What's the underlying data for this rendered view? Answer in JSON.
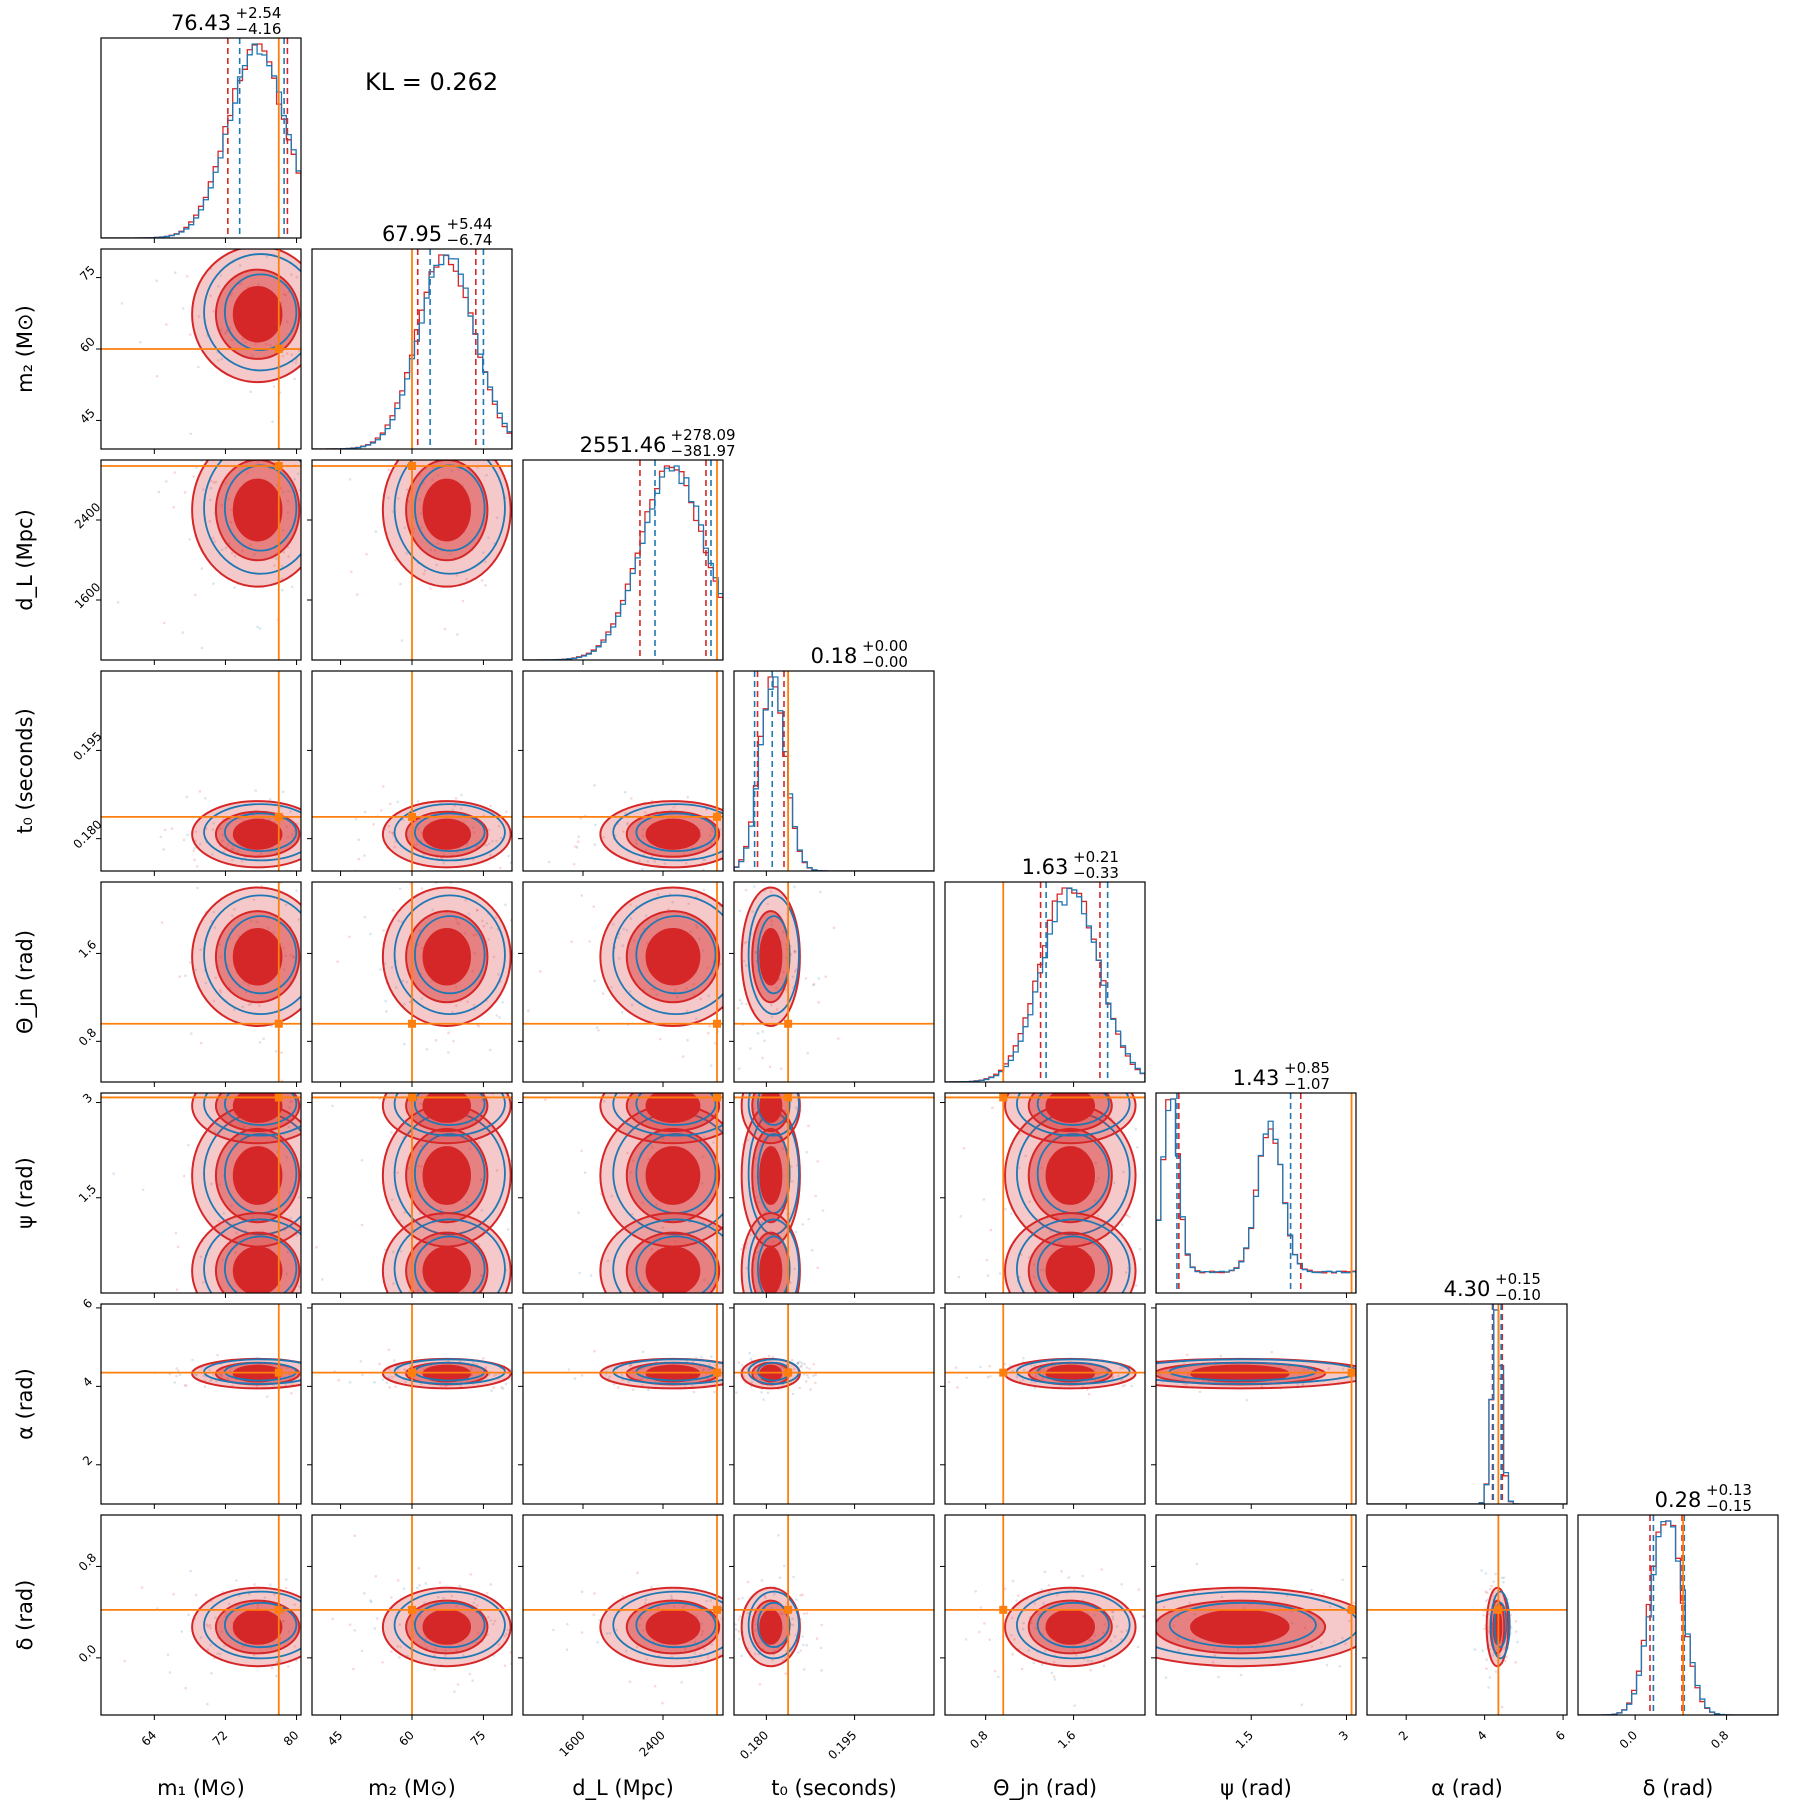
{
  "chart_data": {
    "type": "corner",
    "annotation": "KL = 0.262",
    "series": [
      {
        "name": "",
        "color": "#d62728"
      },
      {
        "name": "",
        "color": "#1f77b4"
      }
    ],
    "truth_color": "#ff7f0e",
    "parameters": [
      {
        "key": "m1",
        "label": "m₁ (M⊙)",
        "median": "76.43",
        "plus": "+2.54",
        "minus": "−4.16",
        "range": [
          58,
          80.5
        ],
        "ticks": [
          64,
          72,
          80
        ],
        "truth": 78.0,
        "q": {
          "red": [
            72.27,
            78.97
          ],
          "blue": [
            73.6,
            78.6
          ]
        }
      },
      {
        "key": "m2",
        "label": "m₂ (M⊙)",
        "median": "67.95",
        "plus": "+5.44",
        "minus": "−6.74",
        "range": [
          39,
          81
        ],
        "ticks": [
          45,
          60,
          75
        ],
        "truth": 60.0,
        "q": {
          "red": [
            61.2,
            73.4
          ],
          "blue": [
            63.8,
            75.0
          ]
        }
      },
      {
        "key": "dL",
        "label": "d_L (Mpc)",
        "median": "2551.46",
        "plus": "+278.09",
        "minus": "−381.97",
        "range": [
          1000,
          3000
        ],
        "ticks": [
          1600,
          2400
        ],
        "truth": 2940,
        "q": {
          "red": [
            2169.5,
            2829.6
          ],
          "blue": [
            2320,
            2880
          ]
        }
      },
      {
        "key": "t0",
        "label": "t₀ (seconds)",
        "median": "0.18",
        "plus": "+0.00",
        "minus": "−0.00",
        "range": [
          0.1745,
          0.2085
        ],
        "ticks": [
          0.18,
          0.195
        ],
        "ticklabels": [
          "0.180",
          "0.195"
        ],
        "truth": 0.1837,
        "q": {
          "red": [
            0.1785,
            0.183
          ],
          "blue": [
            0.178,
            0.181
          ]
        }
      },
      {
        "key": "theta",
        "label": "Θ_jn (rad)",
        "median": "1.63",
        "plus": "+0.21",
        "minus": "−0.33",
        "range": [
          0.43,
          2.25
        ],
        "ticks": [
          0.8,
          1.6
        ],
        "truth": 0.96,
        "q": {
          "red": [
            1.3,
            1.84
          ],
          "blue": [
            1.35,
            1.91
          ]
        }
      },
      {
        "key": "psi",
        "label": "ψ (rad)",
        "median": "1.43",
        "plus": "+0.85",
        "minus": "−1.07",
        "range": [
          0.0,
          3.15
        ],
        "ticks": [
          1.5,
          3.0
        ],
        "truth": 3.08,
        "q": {
          "red": [
            0.36,
            2.28
          ],
          "blue": [
            0.33,
            2.12
          ]
        }
      },
      {
        "key": "alpha",
        "label": "α (rad)",
        "median": "4.30",
        "plus": "+0.15",
        "minus": "−0.10",
        "range": [
          1.0,
          6.1
        ],
        "ticks": [
          2,
          4,
          6
        ],
        "truth": 4.35,
        "q": {
          "red": [
            4.2,
            4.45
          ],
          "blue": [
            4.22,
            4.42
          ]
        }
      },
      {
        "key": "delta",
        "label": "δ (rad)",
        "median": "0.28",
        "plus": "+0.13",
        "minus": "−0.15",
        "range": [
          -0.5,
          1.25
        ],
        "ticks": [
          0.0,
          0.8
        ],
        "ticklabels": [
          "0.0",
          "0.8"
        ],
        "truth": 0.42,
        "q": {
          "red": [
            0.13,
            0.41
          ],
          "blue": [
            0.16,
            0.43
          ]
        }
      }
    ]
  }
}
